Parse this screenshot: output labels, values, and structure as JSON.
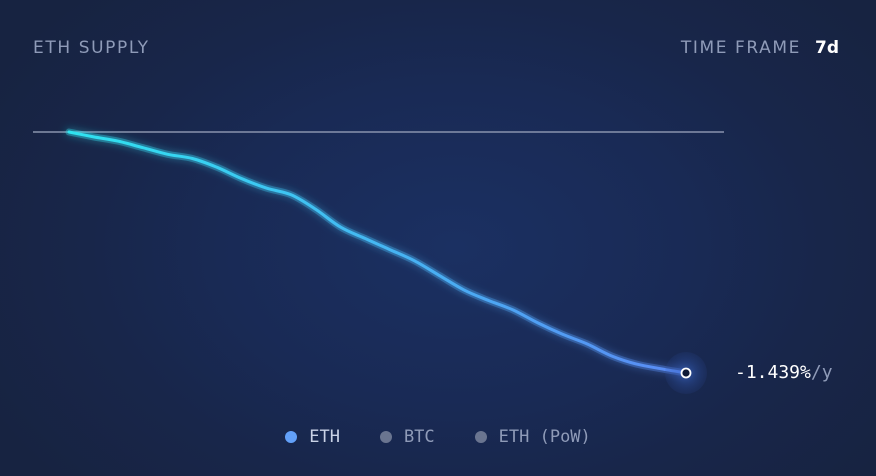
{
  "header": {
    "title": "ETH SUPPLY",
    "timeframe_label": "TIME FRAME",
    "timeframe_value": "7d"
  },
  "readout": {
    "value": "-1.439%",
    "unit": "/y"
  },
  "legend": {
    "items": [
      {
        "label": "ETH",
        "color": "#62a0f8",
        "active": true
      },
      {
        "label": "BTC",
        "color": "#6a7590",
        "active": false
      },
      {
        "label": "ETH (PoW)",
        "color": "#6a7590",
        "active": false
      }
    ]
  },
  "chart_data": {
    "type": "line",
    "title": "ETH SUPPLY",
    "xlabel": "",
    "ylabel": "",
    "grid": false,
    "legend_placement": "bottom-center",
    "reference_line": 0,
    "series": [
      {
        "name": "ETH",
        "color_start": "#2fe4f0",
        "color_end": "#5b8af5",
        "x": [
          0,
          0.04,
          0.08,
          0.12,
          0.16,
          0.2,
          0.24,
          0.28,
          0.32,
          0.36,
          0.4,
          0.44,
          0.48,
          0.52,
          0.56,
          0.6,
          0.64,
          0.68,
          0.72,
          0.76,
          0.8,
          0.84,
          0.88,
          0.92,
          0.96,
          1.0
        ],
        "y": [
          0,
          -0.029,
          -0.055,
          -0.094,
          -0.133,
          -0.158,
          -0.211,
          -0.279,
          -0.335,
          -0.375,
          -0.462,
          -0.568,
          -0.636,
          -0.702,
          -0.769,
          -0.856,
          -0.943,
          -1.006,
          -1.063,
          -1.14,
          -1.208,
          -1.266,
          -1.338,
          -1.386,
          -1.414,
          -1.439
        ]
      }
    ]
  }
}
